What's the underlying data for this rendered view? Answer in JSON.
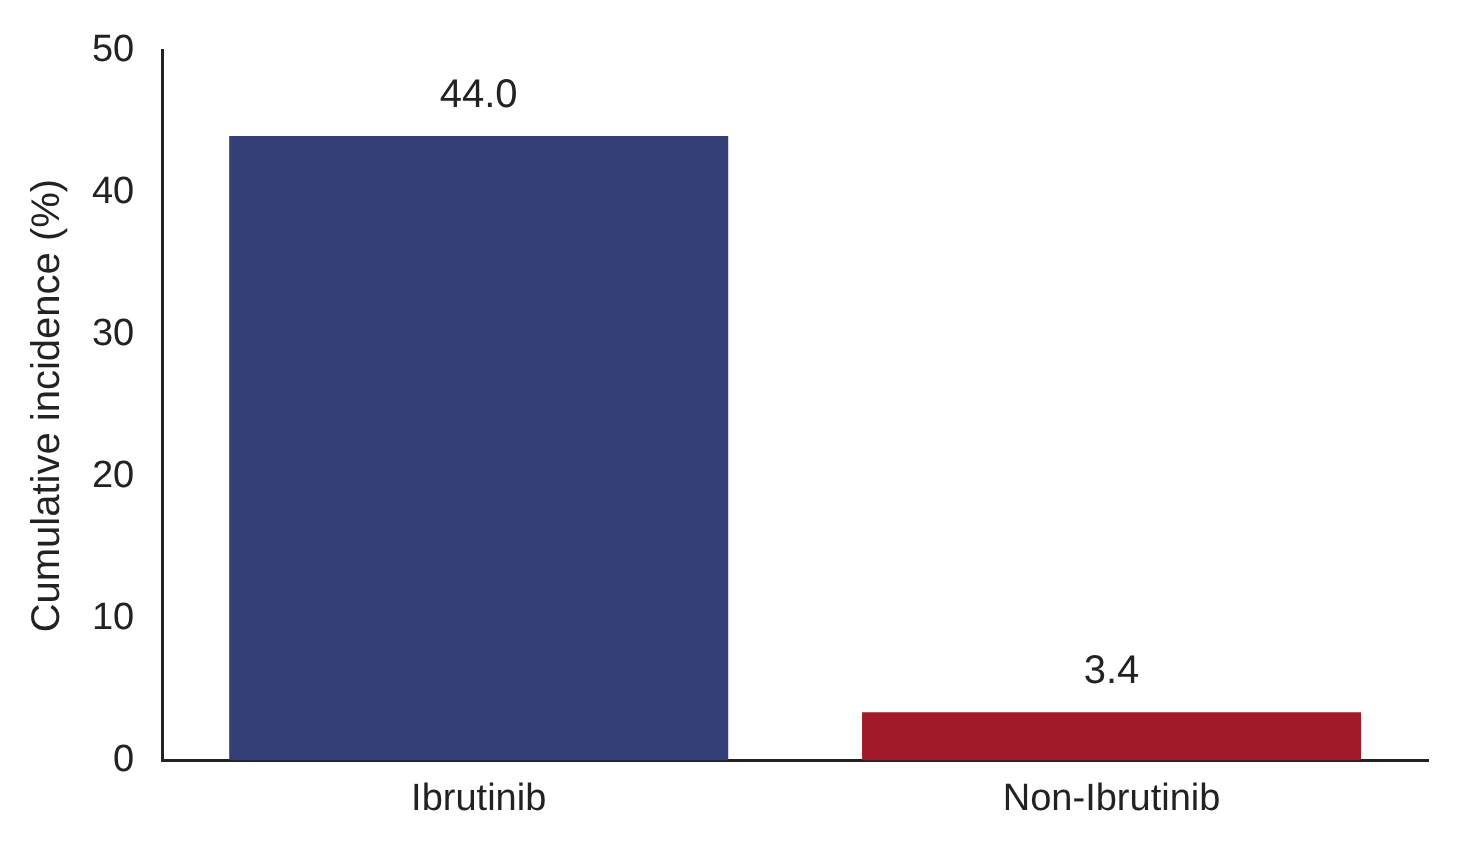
{
  "chart_data": {
    "type": "bar",
    "ylabel": "Cumulative incidence (%)",
    "categories": [
      "Ibrutinib",
      "Non-Ibrutinib"
    ],
    "values": [
      44.0,
      3.4
    ],
    "colors": [
      "#343f78",
      "#a01a2a"
    ],
    "value_labels": [
      "44.0",
      "3.4"
    ],
    "ylim": [
      0,
      50
    ],
    "yticks": [
      0,
      10,
      20,
      30,
      40,
      50
    ],
    "grid": false,
    "legend": false
  }
}
